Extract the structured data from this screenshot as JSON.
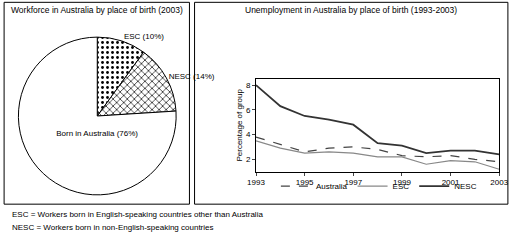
{
  "chart_data": [
    {
      "type": "pie",
      "title": "Workforce in Australia by place of birth (2003)",
      "categories": [
        "ESC",
        "NESC",
        "Born in Australia"
      ],
      "values": [
        10,
        14,
        76
      ],
      "value_labels": [
        "ESC (10%)",
        "NESC (14%)",
        "Born in Australia (76%)"
      ],
      "colors": [
        "#ffffff",
        "#ffffff",
        "#ffffff"
      ],
      "data_labels": true
    },
    {
      "type": "line",
      "title": "Unemployment in Australia by place of birth (1993-2003)",
      "y_label": "Percentage of group",
      "x": [
        1993,
        1994,
        1995,
        1996,
        1997,
        1998,
        1999,
        2000,
        2001,
        2002,
        2003
      ],
      "series": [
        {
          "name": "Australia",
          "color": "#444444",
          "line_style": "dash",
          "values": [
            3.8,
            3.2,
            2.6,
            2.9,
            3.0,
            2.8,
            2.3,
            2.2,
            2.3,
            2.0,
            1.8
          ]
        },
        {
          "name": "ESC",
          "color": "#888888",
          "line_style": "solid",
          "values": [
            3.5,
            2.9,
            2.5,
            2.6,
            2.5,
            2.2,
            2.2,
            1.6,
            1.9,
            1.8,
            1.2
          ]
        },
        {
          "name": "NESC",
          "color": "#333333",
          "line_style": "solid",
          "values": [
            8.0,
            6.3,
            5.5,
            5.2,
            4.8,
            3.3,
            3.1,
            2.5,
            2.7,
            2.7,
            2.4
          ]
        }
      ],
      "xlim": [
        1993,
        2003
      ],
      "xticks": [
        1993,
        1995,
        1997,
        1999,
        2001,
        2003
      ],
      "ylim": [
        1,
        8.5
      ],
      "yticks": [
        2,
        4,
        6,
        8
      ],
      "grid": false,
      "legend": "bottom"
    }
  ],
  "notes": [
    "ESC = Workers born in English-speaking countries other than Australia",
    "NESC = Workers born in non-English-speaking countries"
  ]
}
